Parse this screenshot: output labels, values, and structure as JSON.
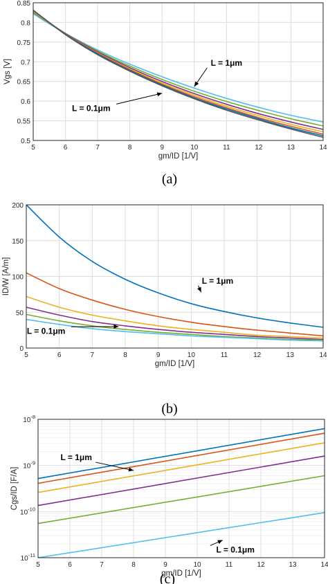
{
  "chart_data": [
    {
      "type": "line",
      "caption": "(a)",
      "xlabel": "gm/ID [1/V]",
      "ylabel": "Vgs [V]",
      "xlim": [
        5,
        14
      ],
      "ylim": [
        0.5,
        0.85
      ],
      "xticks": [
        5,
        6,
        7,
        8,
        9,
        10,
        11,
        12,
        13,
        14
      ],
      "yticks": [
        0.5,
        0.55,
        0.6,
        0.65,
        0.7,
        0.75,
        0.8,
        0.85
      ],
      "ytick_labels": [
        "0.5",
        "0.55",
        "0.6",
        "0.65",
        "0.7",
        "0.75",
        "0.8",
        "0.85"
      ],
      "yscale": "linear",
      "grid": true,
      "x": [
        5,
        6,
        7,
        8,
        9,
        10,
        11,
        12,
        13,
        14
      ],
      "series": [
        {
          "color": "#4dbeee",
          "values": [
            0.822,
            0.772,
            0.73,
            0.694,
            0.662,
            0.633,
            0.607,
            0.584,
            0.564,
            0.547
          ]
        },
        {
          "color": "#77ac30",
          "values": [
            0.825,
            0.772,
            0.727,
            0.689,
            0.655,
            0.625,
            0.599,
            0.576,
            0.555,
            0.537
          ]
        },
        {
          "color": "#7e2f8e",
          "values": [
            0.827,
            0.772,
            0.725,
            0.685,
            0.65,
            0.619,
            0.592,
            0.568,
            0.547,
            0.528
          ]
        },
        {
          "color": "#edb120",
          "values": [
            0.828,
            0.771,
            0.723,
            0.682,
            0.646,
            0.615,
            0.587,
            0.563,
            0.541,
            0.522
          ]
        },
        {
          "color": "#d95319",
          "values": [
            0.83,
            0.771,
            0.722,
            0.68,
            0.643,
            0.611,
            0.583,
            0.558,
            0.536,
            0.516
          ]
        },
        {
          "color": "#0072bd",
          "values": [
            0.831,
            0.77,
            0.72,
            0.678,
            0.641,
            0.608,
            0.58,
            0.555,
            0.532,
            0.512
          ]
        },
        {
          "color": "#555555",
          "values": [
            0.831,
            0.769,
            0.718,
            0.676,
            0.639,
            0.606,
            0.577,
            0.552,
            0.529,
            0.508
          ]
        }
      ],
      "annotations": [
        {
          "text": "L = 1μm",
          "x": 11.0,
          "y": 0.69,
          "arrow_to": [
            10.0,
            0.637
          ]
        },
        {
          "text": "L = 0.1μm",
          "x": 6.8,
          "y": 0.575,
          "arrow_to": [
            9.0,
            0.62
          ]
        }
      ]
    },
    {
      "type": "line",
      "caption": "(b)",
      "xlabel": "gm/ID [1/V]",
      "ylabel": "ID/W [A/m]",
      "xlim": [
        5,
        14
      ],
      "ylim": [
        0,
        200
      ],
      "xticks": [
        5,
        6,
        7,
        8,
        9,
        10,
        11,
        12,
        13,
        14
      ],
      "yticks": [
        0,
        50,
        100,
        150,
        200
      ],
      "ytick_labels": [
        "0",
        "50",
        "100",
        "150",
        "200"
      ],
      "yscale": "linear",
      "grid": true,
      "x": [
        5,
        6,
        7,
        8,
        9,
        10,
        11,
        12,
        13,
        14
      ],
      "series": [
        {
          "color": "#0072bd",
          "values": [
            200,
            155,
            121,
            96,
            77,
            62,
            51,
            42,
            35,
            29
          ]
        },
        {
          "color": "#d95319",
          "values": [
            105,
            83,
            67,
            54,
            44,
            36,
            30,
            25,
            21,
            17
          ]
        },
        {
          "color": "#edb120",
          "values": [
            72,
            57,
            46,
            38,
            31,
            26,
            22,
            18,
            16,
            14
          ]
        },
        {
          "color": "#7e2f8e",
          "values": [
            57,
            46,
            37,
            31,
            26,
            22,
            19,
            16,
            14,
            12
          ]
        },
        {
          "color": "#77ac30",
          "values": [
            47,
            38,
            31,
            26,
            22,
            19,
            16,
            14,
            12,
            11
          ]
        },
        {
          "color": "#4dbeee",
          "values": [
            40,
            33,
            27,
            23,
            20,
            17,
            15,
            13,
            11,
            10
          ]
        }
      ],
      "annotations": [
        {
          "text": "L = 1μm",
          "x": 10.8,
          "y": 90,
          "arrow_to": [
            10.3,
            78
          ]
        },
        {
          "text": "L = 0.1μm",
          "x": 5.6,
          "y": 20,
          "arrow_to": [
            7.8,
            30
          ]
        }
      ]
    },
    {
      "type": "line",
      "caption": "(c)",
      "xlabel": "gm/ID [1/V]",
      "ylabel": "Cgs/ID [F/A]",
      "xlim": [
        5,
        14
      ],
      "ylim": [
        1e-11,
        1e-08
      ],
      "xticks": [
        5,
        6,
        7,
        8,
        9,
        10,
        11,
        12,
        13,
        14
      ],
      "yticks": [
        1e-11,
        1e-10,
        1e-09,
        1e-08
      ],
      "ytick_labels": [
        "10-11",
        "10-10",
        "10-9",
        "10-8"
      ],
      "yscale": "log",
      "grid": true,
      "x": [
        5,
        14
      ],
      "series": [
        {
          "color": "#0072bd",
          "values": [
            5.2e-10,
            6.3e-09
          ]
        },
        {
          "color": "#d95319",
          "values": [
            4.1e-10,
            5e-09
          ]
        },
        {
          "color": "#edb120",
          "values": [
            2.6e-10,
            3.1e-09
          ]
        },
        {
          "color": "#7e2f8e",
          "values": [
            1.35e-10,
            1.6e-09
          ]
        },
        {
          "color": "#77ac30",
          "values": [
            5.5e-11,
            6e-10
          ]
        },
        {
          "color": "#4dbeee",
          "values": [
            1e-11,
            9.5e-11
          ]
        }
      ],
      "annotations": [
        {
          "text": "L = 1μm",
          "x": 6.2,
          "y": 1.3e-09,
          "arrow_to": [
            8.0,
            7.8e-10
          ]
        },
        {
          "text": "L = 0.1μm",
          "x": 11.2,
          "y": 1.3e-11,
          "arrow_to": [
            10.8,
            2.4e-11
          ]
        }
      ]
    }
  ]
}
